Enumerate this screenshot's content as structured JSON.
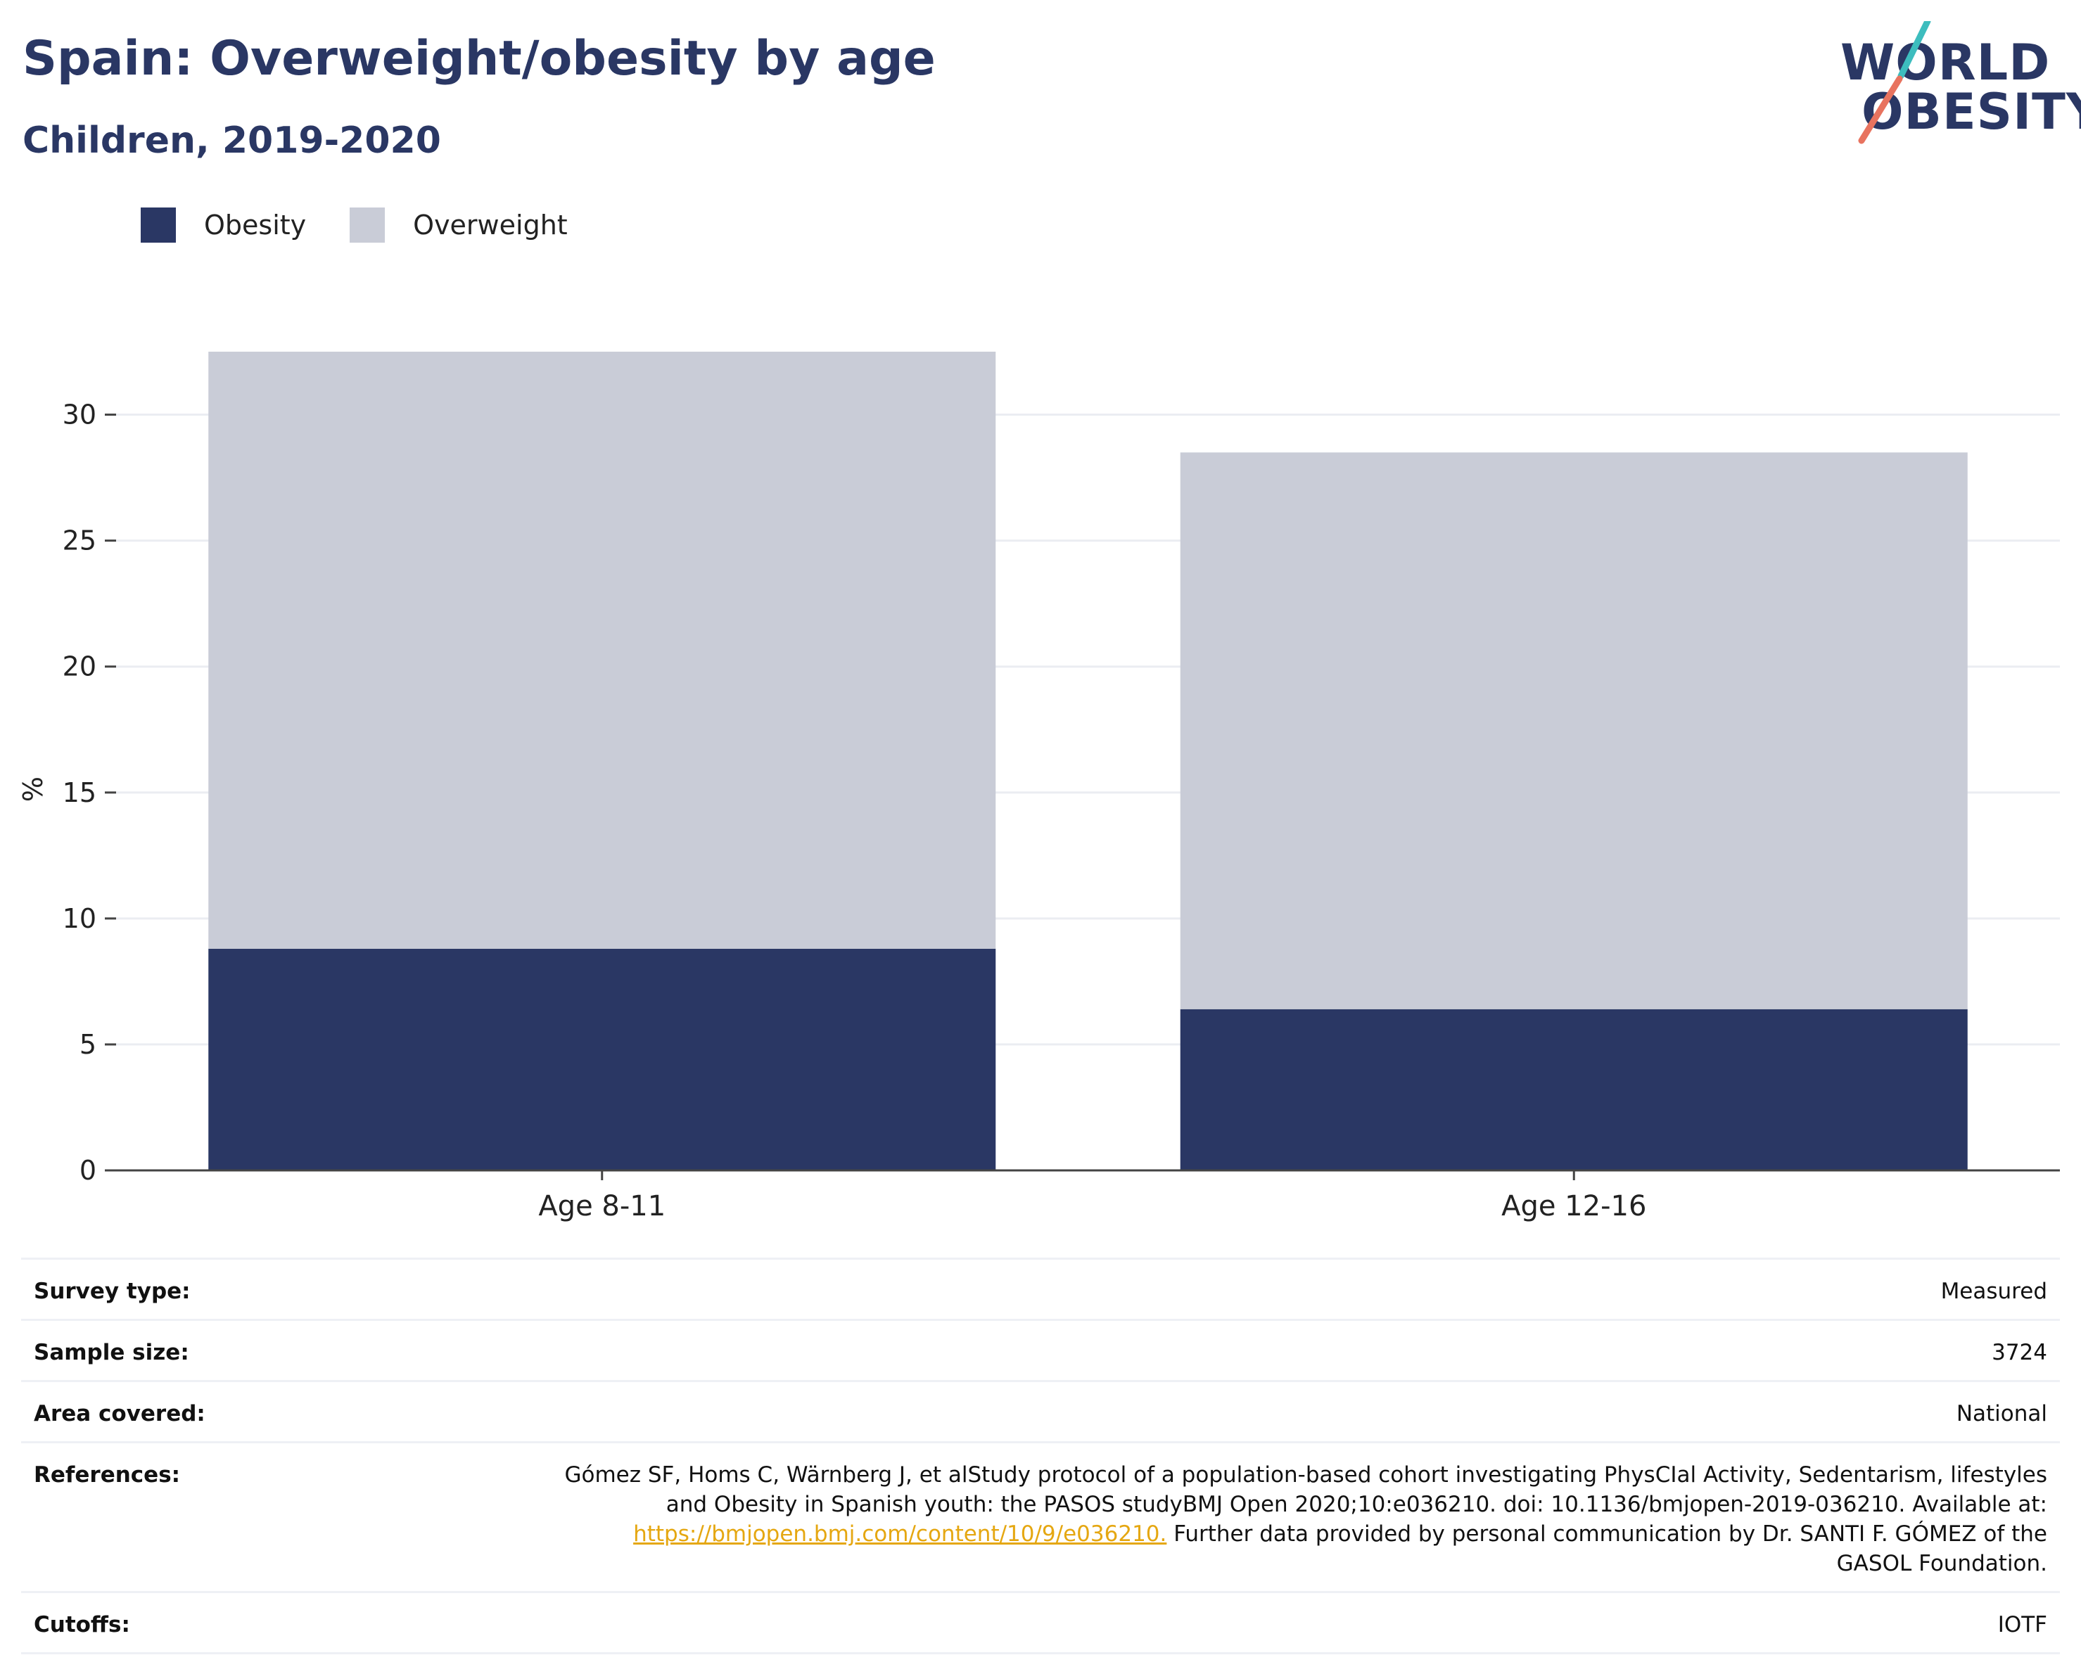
{
  "header": {
    "title": "Spain: Overweight/obesity by age",
    "subtitle": "Children, 2019-2020"
  },
  "logo": {
    "line1": "WORLD",
    "line2": "OBESITY",
    "colors": {
      "teal": "#3dbdbe",
      "coral": "#e8735f"
    }
  },
  "legend": [
    {
      "label": "Obesity",
      "color": "#2a3764"
    },
    {
      "label": "Overweight",
      "color": "#c9ccd7"
    }
  ],
  "chart_data": {
    "type": "bar",
    "stacked": true,
    "categories": [
      "Age 8-11",
      "Age 12-16"
    ],
    "series": [
      {
        "name": "Obesity",
        "values": [
          8.8,
          6.4
        ],
        "color": "#2a3764"
      },
      {
        "name": "Overweight",
        "values": [
          23.7,
          22.1
        ],
        "color": "#c9ccd7"
      }
    ],
    "ylabel": "%",
    "ylim": [
      0,
      32.5
    ],
    "yticks": [
      0,
      5,
      10,
      15,
      20,
      25,
      30
    ],
    "grid": true
  },
  "meta": {
    "survey_type": {
      "key": "Survey type:",
      "value": "Measured"
    },
    "sample_size": {
      "key": "Sample size:",
      "value": "3724"
    },
    "area_covered": {
      "key": "Area covered:",
      "value": "National"
    },
    "references": {
      "key": "References:",
      "line1": "Gómez SF, Homs C, Wärnberg J, et alStudy protocol of a population-based cohort investigating PhysCIal Activity, Sedentarism, lifestyles",
      "line2": "and Obesity in Spanish youth: the PASOS studyBMJ Open 2020;10:e036210. doi: 10.1136/bmjopen-2019-036210. Available at:",
      "link": "https://bmjopen.bmj.com/content/10/9/e036210.",
      "line3_rest": " Further data provided by personal communication by Dr. SANTI F. GÓMEZ of the",
      "line4": "GASOL Foundation."
    },
    "cutoffs": {
      "key": "Cutoffs:",
      "value": "IOTF"
    }
  }
}
